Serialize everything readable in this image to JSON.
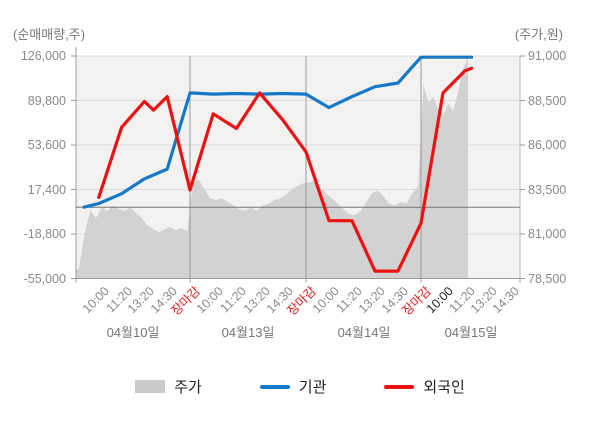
{
  "titles": {
    "left_axis": "(순매매량,주)",
    "right_axis": "(주가,원)"
  },
  "legend": {
    "items": [
      {
        "label": "주가",
        "swatch": "area",
        "color": "#cbcbcb"
      },
      {
        "label": "기관",
        "swatch": "line",
        "color": "#1679c8"
      },
      {
        "label": "외국인",
        "swatch": "line",
        "color": "#ec1212"
      }
    ]
  },
  "chart_data": {
    "type": "mixed: intraday price area (right axis) + cumulative net-buy lines (left axis)",
    "left_axis": {
      "label": "(순매매량,주)",
      "ticks": [
        "126,000",
        "89,800",
        "53,600",
        "17,400",
        "-18,800",
        "-55,000"
      ],
      "tick_values": [
        126000,
        89800,
        53600,
        17400,
        -18800,
        -55000
      ],
      "range": [
        -55000,
        126000
      ]
    },
    "right_axis": {
      "label": "(주가,원)",
      "ticks": [
        "91,000",
        "88,500",
        "86,000",
        "83,500",
        "81,000",
        "78,500"
      ],
      "tick_values": [
        91000,
        88500,
        86000,
        83500,
        81000,
        78500
      ],
      "range": [
        78500,
        91000
      ]
    },
    "x_axis": {
      "days": [
        {
          "date": "04월10일",
          "times": [
            {
              "label": "10:00"
            },
            {
              "label": "11:20"
            },
            {
              "label": "13:20"
            },
            {
              "label": "14:30"
            },
            {
              "label": "장마감",
              "color": "red"
            }
          ]
        },
        {
          "date": "04월13일",
          "times": [
            {
              "label": "10:00"
            },
            {
              "label": "11:20"
            },
            {
              "label": "13:20"
            },
            {
              "label": "14:30"
            },
            {
              "label": "장마감",
              "color": "red"
            }
          ]
        },
        {
          "date": "04월14일",
          "times": [
            {
              "label": "10:00"
            },
            {
              "label": "11:20"
            },
            {
              "label": "13:20"
            },
            {
              "label": "14:30"
            },
            {
              "label": "장마감",
              "color": "red"
            }
          ]
        },
        {
          "date": "04월15일",
          "times": [
            {
              "label": "10:00",
              "color": "dark"
            },
            {
              "label": "11:20"
            },
            {
              "label": "13:20"
            },
            {
              "label": "14:30"
            }
          ]
        }
      ]
    },
    "reference_line": {
      "axis": "right",
      "value": 82500
    },
    "grid": {
      "horizontal": true,
      "day_boundaries": true
    },
    "series": [
      {
        "name": "주가",
        "type": "area",
        "axis": "right",
        "color": "#d2d2d2",
        "samples_per_day": 20,
        "prices_by_day": [
          [
            79000,
            81000,
            82300,
            81900,
            82500,
            82300,
            82600,
            82400,
            82300,
            82500,
            82200,
            81900,
            81500,
            81300,
            81100,
            81250,
            81400,
            81200,
            81350,
            81150
          ],
          [
            83900,
            84050,
            83500,
            83000,
            82900,
            83000,
            82800,
            82600,
            82400,
            82300,
            82500,
            82300,
            82600,
            82700,
            82900,
            83000,
            83200,
            83500,
            83700,
            83850
          ],
          [
            83900,
            84000,
            83600,
            83300,
            83000,
            82700,
            82400,
            82100,
            82050,
            82300,
            82800,
            83300,
            83450,
            83100,
            82700,
            82600,
            82800,
            82700,
            83300,
            83650
          ],
          [
            89400,
            88400,
            88700,
            88000,
            87700,
            88300,
            87900,
            89000,
            90300,
            90900
          ]
        ]
      },
      {
        "name": "기관",
        "type": "line",
        "axis": "left",
        "color": "#1679c8",
        "points_by_day": [
          [
            [
              -0.65,
              3000
            ],
            [
              0,
              6000
            ],
            [
              1,
              14000
            ],
            [
              2,
              26000
            ],
            [
              3,
              34000
            ],
            [
              4,
              96000
            ]
          ],
          [
            [
              0,
              95000
            ],
            [
              1,
              95500
            ],
            [
              2,
              95000
            ],
            [
              3,
              95500
            ],
            [
              4,
              95000
            ]
          ],
          [
            [
              0,
              84000
            ],
            [
              1,
              93000
            ],
            [
              2,
              101000
            ],
            [
              3,
              104000
            ],
            [
              4,
              125000
            ]
          ],
          [
            [
              0,
              125000
            ],
            [
              1,
              125000
            ],
            [
              1.3,
              125000
            ]
          ]
        ]
      },
      {
        "name": "외국인",
        "type": "line",
        "axis": "left",
        "color": "#ec1212",
        "points_by_day": [
          [
            [
              0,
              11000
            ],
            [
              1,
              68000
            ],
            [
              2,
              89000
            ],
            [
              2.4,
              82000
            ],
            [
              3,
              93000
            ],
            [
              4,
              17000
            ]
          ],
          [
            [
              0,
              79000
            ],
            [
              1,
              67000
            ],
            [
              2,
              96000
            ],
            [
              3,
              74000
            ],
            [
              4,
              48000
            ]
          ],
          [
            [
              0,
              -8000
            ],
            [
              1,
              -8000
            ],
            [
              2,
              -49000
            ],
            [
              3,
              -49000
            ],
            [
              4,
              -10000
            ]
          ],
          [
            [
              0,
              96000
            ],
            [
              1,
              114000
            ],
            [
              1.3,
              116000
            ]
          ]
        ]
      }
    ]
  }
}
